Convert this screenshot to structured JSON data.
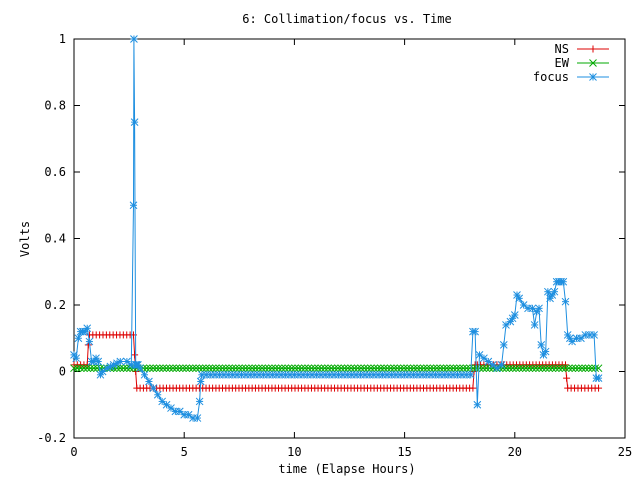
{
  "chart_data": {
    "type": "line",
    "title": "6: Collimation/focus vs. Time",
    "xlabel": "time (Elapse Hours)",
    "ylabel": "Volts",
    "xlim": [
      0,
      25
    ],
    "ylim": [
      -0.2,
      1.0
    ],
    "xticks": [
      0,
      5,
      10,
      15,
      20,
      25
    ],
    "xtick_labels": [
      "0",
      "5",
      "10",
      "15",
      "20",
      "25"
    ],
    "yticks": [
      -0.2,
      0,
      0.2,
      0.4,
      0.6,
      0.8,
      1.0
    ],
    "ytick_labels": [
      "-0.2",
      "0",
      "0.2",
      "0.4",
      "0.6",
      "0.8",
      "1"
    ],
    "legend_position": "top-right",
    "series": [
      {
        "name": "NS",
        "color": "#dd0000",
        "marker": "plus",
        "x": [
          0,
          0.6,
          0.65,
          0.7,
          2.7,
          2.75,
          2.8,
          2.85,
          3.0,
          18.1,
          18.15,
          18.2,
          18.3,
          22.3,
          22.35,
          22.4,
          23.8
        ],
        "y": [
          0.02,
          0.02,
          0.08,
          0.11,
          0.11,
          0.05,
          0.0,
          -0.05,
          -0.05,
          -0.05,
          0.0,
          0.02,
          0.02,
          0.02,
          -0.02,
          -0.05,
          -0.05
        ]
      },
      {
        "name": "EW",
        "color": "#00aa00",
        "marker": "cross",
        "x": [
          0,
          23.8
        ],
        "y": [
          0.01,
          0.01
        ]
      },
      {
        "name": "focus",
        "color": "#1e8fe0",
        "marker": "star",
        "x": [
          0,
          0.1,
          0.2,
          0.3,
          0.4,
          0.5,
          0.6,
          0.7,
          0.8,
          0.9,
          1.0,
          1.1,
          1.2,
          1.3,
          1.5,
          1.8,
          2.1,
          2.4,
          2.6,
          2.7,
          2.72,
          2.75,
          2.8,
          2.82,
          2.85,
          2.9,
          3.0,
          3.2,
          3.4,
          3.6,
          3.8,
          4.0,
          4.2,
          4.4,
          4.6,
          4.8,
          5.0,
          5.2,
          5.4,
          5.6,
          5.7,
          5.75,
          5.8,
          6.0,
          8.0,
          10.0,
          12.0,
          14.0,
          16.0,
          18.0,
          18.1,
          18.2,
          18.3,
          18.4,
          18.6,
          18.8,
          19.0,
          19.2,
          19.4,
          19.5,
          19.6,
          19.8,
          19.9,
          20.0,
          20.1,
          20.2,
          20.4,
          20.6,
          20.8,
          20.9,
          21.0,
          21.1,
          21.2,
          21.3,
          21.4,
          21.5,
          21.6,
          21.7,
          21.8,
          21.9,
          22.0,
          22.1,
          22.2,
          22.3,
          22.4,
          22.5,
          22.6,
          22.8,
          23.0,
          23.2,
          23.4,
          23.6,
          23.7,
          23.8
        ],
        "y": [
          0.05,
          0.04,
          0.1,
          0.12,
          0.12,
          0.12,
          0.13,
          0.09,
          0.03,
          0.03,
          0.04,
          0.03,
          -0.01,
          0.0,
          0.01,
          0.02,
          0.03,
          0.03,
          0.02,
          0.5,
          1.0,
          0.75,
          0.02,
          0.02,
          0.02,
          0.02,
          0.01,
          -0.01,
          -0.03,
          -0.05,
          -0.07,
          -0.09,
          -0.1,
          -0.11,
          -0.12,
          -0.12,
          -0.13,
          -0.13,
          -0.14,
          -0.14,
          -0.09,
          -0.03,
          -0.01,
          -0.01,
          -0.01,
          -0.01,
          -0.01,
          -0.01,
          -0.01,
          -0.01,
          0.12,
          0.12,
          -0.1,
          0.05,
          0.04,
          0.03,
          0.02,
          0.01,
          0.02,
          0.08,
          0.14,
          0.15,
          0.16,
          0.17,
          0.23,
          0.22,
          0.2,
          0.19,
          0.19,
          0.14,
          0.18,
          0.19,
          0.08,
          0.05,
          0.06,
          0.24,
          0.22,
          0.23,
          0.24,
          0.27,
          0.27,
          0.27,
          0.27,
          0.21,
          0.11,
          0.1,
          0.09,
          0.1,
          0.1,
          0.11,
          0.11,
          0.11,
          -0.02,
          -0.02
        ]
      }
    ]
  }
}
